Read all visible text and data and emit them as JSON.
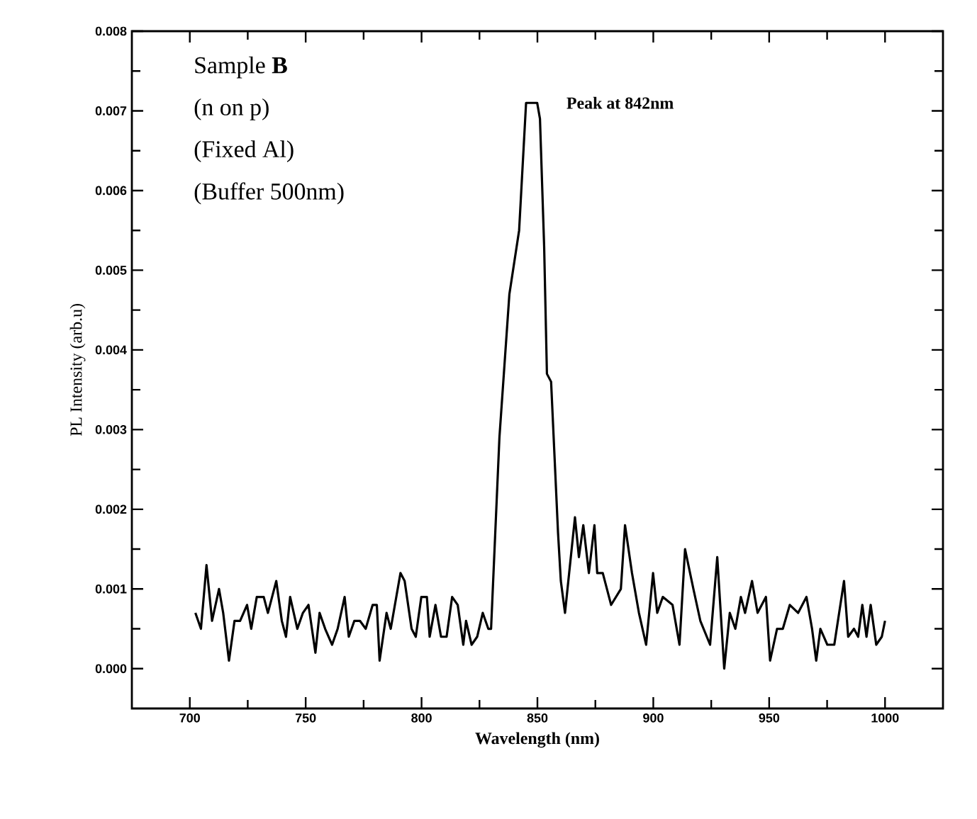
{
  "chart_data": {
    "type": "line",
    "xlabel": "Wavelength (nm)",
    "ylabel": "PL Intensity (arb.u)",
    "annotations": [
      "Sample **B**",
      "(n on p)",
      "(Fixed Al)",
      "(Buffer 500nm)",
      {
        "text": "Peak at 842nm",
        "x": 842,
        "y": 0.0071
      }
    ],
    "xlim": [
      675,
      1025
    ],
    "ylim": [
      -0.0005,
      0.008
    ],
    "xticks": [
      700,
      750,
      800,
      850,
      900,
      950,
      1000
    ],
    "yticks": [
      {
        "value": 0,
        "label": "0.000"
      },
      0.001,
      0.002,
      0.003,
      0.004,
      0.005,
      0.006,
      0.007,
      0.008
    ],
    "marker": "none",
    "line_style": "solid",
    "series": [
      {
        "color": "#000000",
        "x": [
          702.4,
          704.8,
          707.2,
          709.6,
          712.6,
          714.4,
          716.9,
          719.3,
          721.7,
          724.7,
          726.5,
          728.9,
          731.9,
          733.7,
          737.3,
          739.7,
          741.5,
          743.3,
          746.4,
          748.8,
          751.2,
          754.2,
          756,
          758.4,
          761.4,
          763.8,
          766.8,
          768.6,
          771,
          773.4,
          775.9,
          778.9,
          780.7,
          781.9,
          784.9,
          786.7,
          790.9,
          792.7,
          795.7,
          797.5,
          799.9,
          802.3,
          803.5,
          806,
          808.4,
          810.8,
          813.2,
          815.6,
          818,
          819.2,
          821.6,
          824,
          826.4,
          828.8,
          830,
          830.6,
          833.6,
          837.9,
          842.1,
          845.1,
          849.9,
          851.1,
          852.9,
          854.1,
          855.9,
          858.9,
          860.1,
          861.9,
          866.2,
          867.9,
          869.8,
          872.2,
          874.6,
          875.8,
          878.2,
          881.8,
          886,
          887.8,
          890.8,
          893.8,
          896.9,
          899.9,
          901.7,
          904.1,
          908.3,
          911.3,
          913.7,
          917.3,
          920.3,
          924.5,
          927.6,
          930.6,
          933,
          935.4,
          937.8,
          939.6,
          942.6,
          945,
          948.6,
          950.4,
          953.4,
          955.9,
          958.9,
          962.5,
          966.1,
          968.5,
          970.3,
          972.1,
          975.1,
          978.1,
          982.3,
          984.1,
          986.6,
          988.4,
          990.2,
          992,
          993.8,
          996.2,
          998.6,
          1000
        ],
        "values": [
          0.0007,
          0.0005,
          0.0013,
          0.0006,
          0.001,
          0.0007,
          0.0001,
          0.0006,
          0.0006,
          0.0008,
          0.0005,
          0.0009,
          0.0009,
          0.0007,
          0.0011,
          0.0006,
          0.0004,
          0.0009,
          0.0005,
          0.0007,
          0.0008,
          0.0002,
          0.0007,
          0.0005,
          0.0003,
          0.0005,
          0.0009,
          0.0004,
          0.0006,
          0.0006,
          0.0005,
          0.0008,
          0.0008,
          0.0001,
          0.0007,
          0.0005,
          0.0012,
          0.0011,
          0.0005,
          0.0004,
          0.0009,
          0.0009,
          0.0004,
          0.0008,
          0.0004,
          0.0004,
          0.0009,
          0.0008,
          0.0003,
          0.0006,
          0.0003,
          0.0004,
          0.0007,
          0.0005,
          0.0005,
          0.0009,
          0.0029,
          0.0047,
          0.0055,
          0.0071,
          0.0071,
          0.0069,
          0.0053,
          0.0037,
          0.0036,
          0.0017,
          0.0011,
          0.0007,
          0.0019,
          0.0014,
          0.0018,
          0.0012,
          0.0018,
          0.0012,
          0.0012,
          0.0008,
          0.001,
          0.0018,
          0.0012,
          0.0007,
          0.0003,
          0.0012,
          0.0007,
          0.0009,
          0.0008,
          0.0003,
          0.0015,
          0.001,
          0.0006,
          0.0003,
          0.0014,
          0,
          0.0007,
          0.0005,
          0.0009,
          0.0007,
          0.0011,
          0.0007,
          0.0009,
          0.0001,
          0.0005,
          0.0005,
          0.0008,
          0.0007,
          0.0009,
          0.0005,
          0.0001,
          0.0005,
          0.0003,
          0.0003,
          0.0011,
          0.0004,
          0.0005,
          0.0004,
          0.0008,
          0.0004,
          0.0008,
          0.0003,
          0.0004,
          0.0006
        ]
      }
    ]
  }
}
